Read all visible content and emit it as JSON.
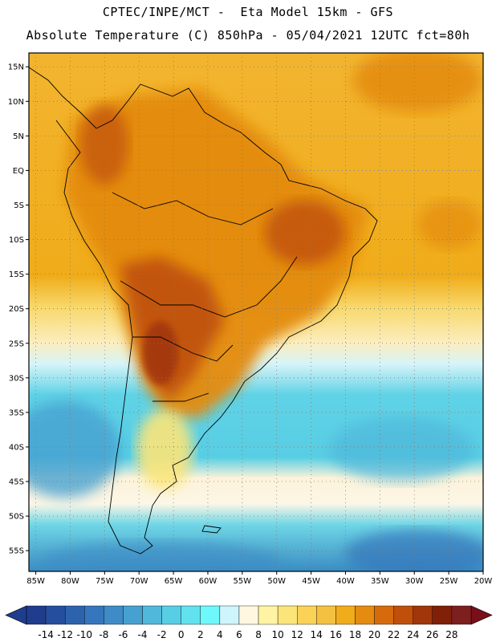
{
  "header": {
    "line1": "CPTEC/INPE/MCT -  Eta Model 15km - GFS",
    "line2": "Absolute Temperature (C) 850hPa - 05/04/2021 12UTC fct=80h"
  },
  "map": {
    "lon_range": [
      -86,
      -20
    ],
    "lat_range": [
      -58,
      17
    ],
    "lat_ticks": [
      {
        "value": 15,
        "label": "15N"
      },
      {
        "value": 10,
        "label": "10N"
      },
      {
        "value": 5,
        "label": "5N"
      },
      {
        "value": 0,
        "label": "EQ"
      },
      {
        "value": -5,
        "label": "5S"
      },
      {
        "value": -10,
        "label": "10S"
      },
      {
        "value": -15,
        "label": "15S"
      },
      {
        "value": -20,
        "label": "20S"
      },
      {
        "value": -25,
        "label": "25S"
      },
      {
        "value": -30,
        "label": "30S"
      },
      {
        "value": -35,
        "label": "35S"
      },
      {
        "value": -40,
        "label": "40S"
      },
      {
        "value": -45,
        "label": "45S"
      },
      {
        "value": -50,
        "label": "50S"
      },
      {
        "value": -55,
        "label": "55S"
      }
    ],
    "lon_ticks": [
      {
        "value": -85,
        "label": "85W"
      },
      {
        "value": -80,
        "label": "80W"
      },
      {
        "value": -75,
        "label": "75W"
      },
      {
        "value": -70,
        "label": "70W"
      },
      {
        "value": -65,
        "label": "65W"
      },
      {
        "value": -60,
        "label": "60W"
      },
      {
        "value": -55,
        "label": "55W"
      },
      {
        "value": -50,
        "label": "50W"
      },
      {
        "value": -45,
        "label": "45W"
      },
      {
        "value": -40,
        "label": "40W"
      },
      {
        "value": -35,
        "label": "35W"
      },
      {
        "value": -30,
        "label": "30W"
      },
      {
        "value": -25,
        "label": "25W"
      },
      {
        "value": -20,
        "label": "20W"
      }
    ],
    "grid": true
  },
  "colorbar": {
    "labels": [
      "-14",
      "-12",
      "-10",
      "-8",
      "-6",
      "-4",
      "-2",
      "0",
      "2",
      "4",
      "6",
      "8",
      "10",
      "12",
      "14",
      "16",
      "18",
      "20",
      "22",
      "24",
      "26",
      "28"
    ],
    "colors": [
      "#1f3d8c",
      "#254f9e",
      "#2d62ad",
      "#3576bc",
      "#3e8bc6",
      "#46a1d1",
      "#50b8db",
      "#58cee4",
      "#62e2ee",
      "#6ef8fb",
      "#cdf5fb",
      "#fff7df",
      "#fff4a3",
      "#fbe57a",
      "#f9d257",
      "#f5c142",
      "#f0ac1a",
      "#e48b10",
      "#d66b0d",
      "#bf4f0b",
      "#a0360a",
      "#802008",
      "#7d1f1f"
    ],
    "under_color": "#1f3d8c",
    "over_color": "#7a0f1a"
  }
}
